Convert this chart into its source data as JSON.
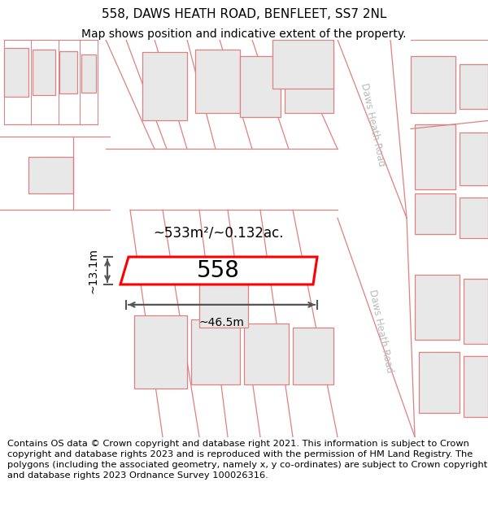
{
  "title": "558, DAWS HEATH ROAD, BENFLEET, SS7 2NL",
  "subtitle": "Map shows position and indicative extent of the property.",
  "footer": "Contains OS data © Crown copyright and database right 2021. This information is subject to Crown copyright and database rights 2023 and is reproduced with the permission of HM Land Registry. The polygons (including the associated geometry, namely x, y co-ordinates) are subject to Crown copyright and database rights 2023 Ordnance Survey 100026316.",
  "road_label_top": "Daws Heath Road",
  "road_label_bottom": "Daws Heath Road",
  "highlight_color": "#ff0000",
  "highlight_label": "558",
  "area_label": "~533m²/~0.132ac.",
  "width_label": "~46.5m",
  "height_label": "~13.1m",
  "title_fontsize": 11,
  "subtitle_fontsize": 10,
  "footer_fontsize": 8.2,
  "map_bg": "#f7f7f7",
  "building_fill": "#e8e8e8",
  "boundary_color": "#e08080",
  "green_fill": "#e8ede8"
}
